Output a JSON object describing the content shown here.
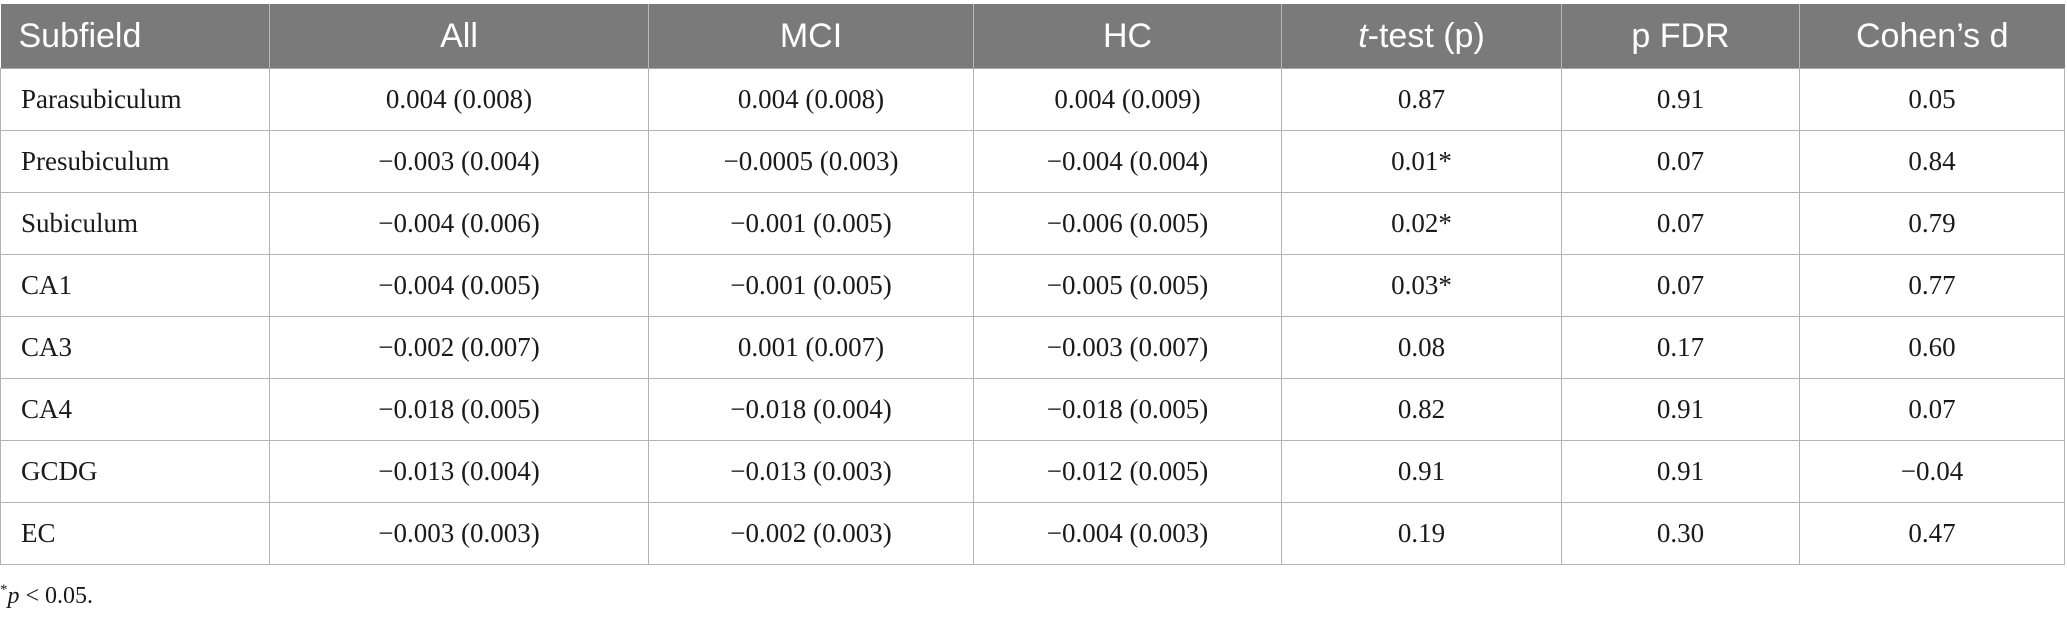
{
  "table": {
    "headers": {
      "subfield": "Subfield",
      "all": "All",
      "mci": "MCI",
      "hc": "HC",
      "ttest_italic": "t",
      "ttest_rest": "-test (p)",
      "pfdr": "p FDR",
      "cohens_d": "Cohen’s d"
    },
    "rows": [
      [
        "Parasubiculum",
        "0.004 (0.008)",
        "0.004 (0.008)",
        "0.004 (0.009)",
        "0.87",
        "0.91",
        "0.05"
      ],
      [
        "Presubiculum",
        "−0.003 (0.004)",
        "−0.0005 (0.003)",
        "−0.004 (0.004)",
        "0.01*",
        "0.07",
        "0.84"
      ],
      [
        "Subiculum",
        "−0.004 (0.006)",
        "−0.001 (0.005)",
        "−0.006 (0.005)",
        "0.02*",
        "0.07",
        "0.79"
      ],
      [
        "CA1",
        "−0.004 (0.005)",
        "−0.001 (0.005)",
        "−0.005 (0.005)",
        "0.03*",
        "0.07",
        "0.77"
      ],
      [
        "CA3",
        "−0.002 (0.007)",
        "0.001 (0.007)",
        "−0.003 (0.007)",
        "0.08",
        "0.17",
        "0.60"
      ],
      [
        "CA4",
        "−0.018 (0.005)",
        "−0.018 (0.004)",
        "−0.018 (0.005)",
        "0.82",
        "0.91",
        "0.07"
      ],
      [
        "GCDG",
        "−0.013 (0.004)",
        "−0.013 (0.003)",
        "−0.012 (0.005)",
        "0.91",
        "0.91",
        "−0.04"
      ],
      [
        "EC",
        "−0.003 (0.003)",
        "−0.002 (0.003)",
        "−0.004 (0.003)",
        "0.19",
        "0.30",
        "0.47"
      ]
    ]
  },
  "footnote": {
    "marker": "*",
    "p_italic": "p",
    "rest": " < 0.05."
  }
}
